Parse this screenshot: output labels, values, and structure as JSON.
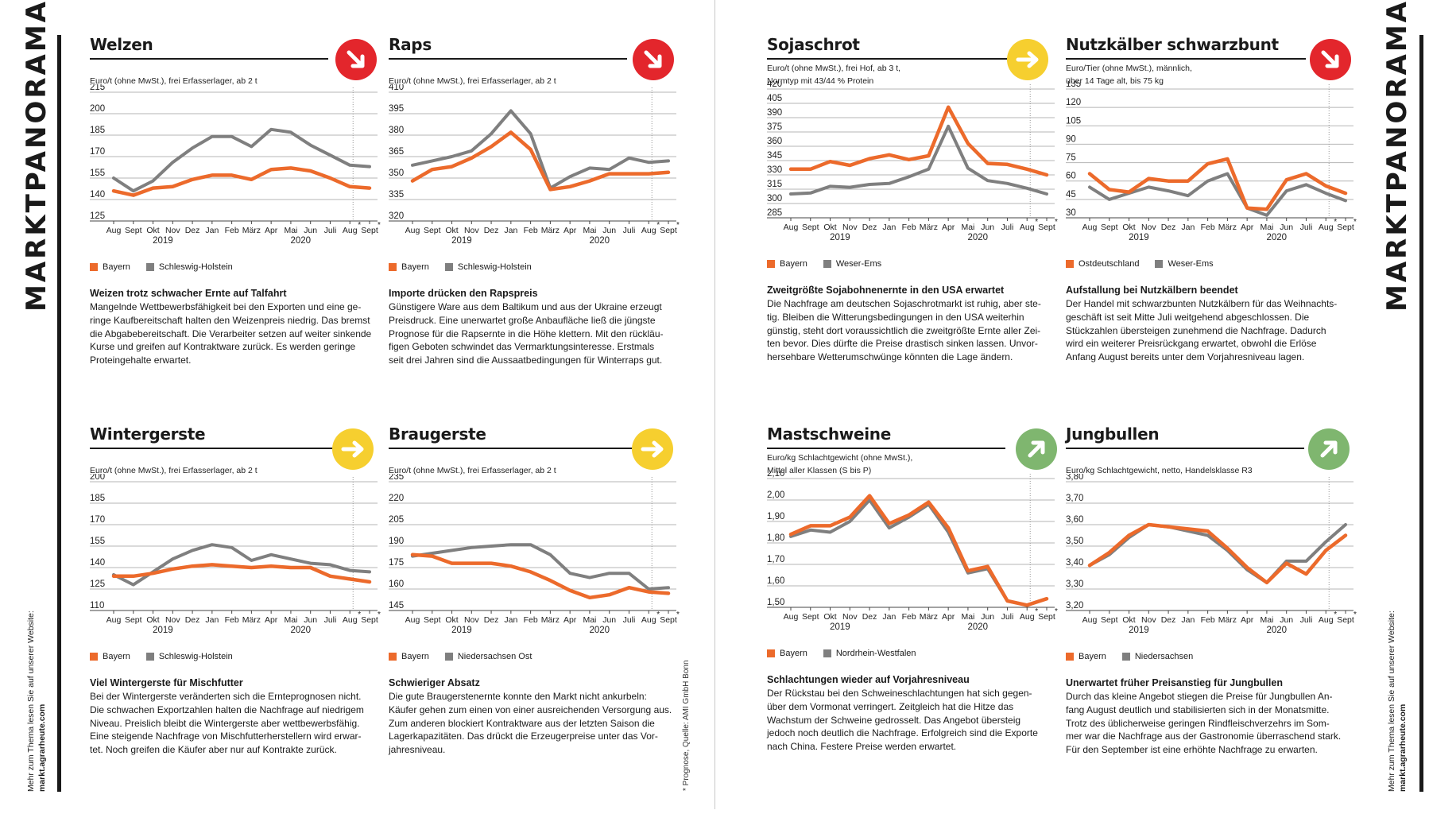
{
  "side": {
    "title": "MARKTPANORAMA",
    "note_line1": "Mehr zum Thema lesen Sie auf unserer Website:",
    "note_line2": "markt.agrarheute.com",
    "source": "* Prognose, Quelle: AMI GmbH Bonn"
  },
  "colors": {
    "orange": "#ec6a2b",
    "gray": "#7f7f7f",
    "red_arrow": "#e3262c",
    "yellow_arrow": "#f6cf2f",
    "green_arrow": "#7fb66f"
  },
  "panels": [
    {
      "id": "welzen",
      "title": "Welzen",
      "trend": "down-right-arrow-icon",
      "trend_color": "#e3262c",
      "unit": [
        "Euro/t (ohne MwSt.), frei Erfasserlager, ab 2 t"
      ],
      "headline": "Weizen trotz schwacher Ernte auf Talfahrt",
      "body": [
        "Mangelnde Wettbewerbsfähigkeit bei den Exporten und eine ge-",
        "ringe Kaufbereitschaft halten den Weizenpreis niedrig. Das bremst",
        "die Abgabebereitschaft. Die Verarbeiter setzen auf weiter sinkende",
        "Kurse und greifen auf Kontraktware zurück. Es werden geringe",
        "Proteingehalte erwartet."
      ]
    },
    {
      "id": "raps",
      "title": "Raps",
      "trend": "down-right-arrow-icon",
      "trend_color": "#e3262c",
      "unit": [
        "Euro/t (ohne MwSt.), frei Erfasserlager, ab 2 t"
      ],
      "headline": "Importe drücken den Rapspreis",
      "body": [
        "Günstigere Ware aus dem Baltikum und aus der Ukraine erzeugt",
        "Preisdruck. Eine unerwartet große Anbaufläche ließ die jüngste",
        "Prognose für die Rapsernte in die Höhe klettern. Mit den rückläu-",
        "figen Geboten schwindet das Vermarktungsinteresse. Erstmals",
        "seit drei Jahren sind die Aussaatbedingungen für Winterraps gut."
      ]
    },
    {
      "id": "sojaschrot",
      "title": "Sojaschrot",
      "trend": "right-arrow-icon",
      "trend_color": "#f6cf2f",
      "unit": [
        "Euro/t (ohne MwSt.), frei Hof, ab 3 t,",
        "Normtyp mit 43/44 % Protein"
      ],
      "headline": "Zweitgrößte Sojabohnenernte in den USA erwartet",
      "body": [
        "Die Nachfrage am deutschen Sojaschrotmarkt ist ruhig, aber ste-",
        "tig. Bleiben die Witterungsbedingungen in den USA weiterhin",
        "günstig, steht dort voraussichtlich die zweitgrößte Ernte aller Zei-",
        "ten bevor. Dies dürfte die Preise drastisch sinken lassen. Unvor-",
        "hersehbare Wetterumschwünge könnten die Lage ändern."
      ]
    },
    {
      "id": "nutzkaelber",
      "title": "Nutzkälber schwarzbunt",
      "trend": "down-right-arrow-icon",
      "trend_color": "#e3262c",
      "unit": [
        "Euro/Tier (ohne MwSt.), männlich,",
        "über 14 Tage alt, bis 75 kg"
      ],
      "headline": "Aufstallung bei Nutzkälbern beendet",
      "body": [
        "Der Handel mit schwarzbunten Nutzkälbern für das Weihnachts-",
        "geschäft ist seit Mitte Juli weitgehend abgeschlossen. Die",
        "Stückzahlen übersteigen zunehmend die Nachfrage. Dadurch",
        "wird ein weiterer Preisrückgang erwartet, obwohl die Erlöse",
        "Anfang August bereits unter dem Vorjahresniveau lagen."
      ]
    },
    {
      "id": "wintergerste",
      "title": "Wintergerste",
      "trend": "right-arrow-icon",
      "trend_color": "#f6cf2f",
      "unit": [
        "Euro/t (ohne MwSt.), frei Erfasserlager, ab 2 t"
      ],
      "headline": "Viel Wintergerste für Mischfutter",
      "body": [
        "Bei der Wintergerste veränderten sich die Ernteprognosen nicht.",
        "Die schwachen Exportzahlen halten die Nachfrage auf niedrigem",
        "Niveau. Preislich bleibt die Wintergerste aber wettbewerbsfähig.",
        "Eine steigende Nachfrage von Mischfutterherstellern wird erwar-",
        "tet. Noch greifen die Käufer aber nur auf Kontrakte zurück."
      ]
    },
    {
      "id": "braugerste",
      "title": "Braugerste",
      "trend": "right-arrow-icon",
      "trend_color": "#f6cf2f",
      "unit": [
        "Euro/t (ohne MwSt.), frei Erfasserlager, ab 2 t"
      ],
      "headline": "Schwieriger Absatz",
      "body": [
        "Die gute Braugerstenernte konnte den Markt nicht ankurbeln:",
        "Käufer gehen zum einen von einer ausreichenden Versorgung aus.",
        "Zum anderen blockiert Kontraktware aus der letzten Saison die",
        "Lagerkapazitäten. Das drückt die Erzeugerpreise unter das Vor-",
        "jahresniveau."
      ]
    },
    {
      "id": "mastschweine",
      "title": "Mastschweine",
      "trend": "up-right-arrow-icon",
      "trend_color": "#7fb66f",
      "unit": [
        "Euro/kg Schlachtgewicht (ohne MwSt.),",
        "Mittel aller Klassen (S bis P)"
      ],
      "headline": "Schlachtungen wieder auf Vorjahresniveau",
      "body": [
        "Der Rückstau bei den Schweineschlachtungen hat sich gegen-",
        "über dem Vormonat verringert. Zeitgleich hat die Hitze das",
        "Wachstum der Schweine gedrosselt. Das Angebot übersteig",
        "jedoch noch deutlich die Nachfrage. Erfolgreich sind die Exporte",
        "nach China. Festere Preise werden erwartet."
      ]
    },
    {
      "id": "jungbullen",
      "title": "Jungbullen",
      "trend": "up-right-arrow-icon",
      "trend_color": "#7fb66f",
      "unit": [
        "Euro/kg Schlachtgewicht, netto, Handelsklasse R3"
      ],
      "headline": "Unerwartet früher Preisanstieg für Jungbullen",
      "body": [
        "Durch das kleine Angebot stiegen die Preise für Jungbullen An-",
        "fang August deutlich und stabilisierten sich in der Monatsmitte.",
        "Trotz des üblicherweise geringen Rindfleischverzehrs im Som-",
        "mer war die Nachfrage aus der Gastronomie überraschend stark.",
        "Für den September ist eine erhöhte Nachfrage zu erwarten."
      ]
    }
  ],
  "chart_data": [
    {
      "type": "line",
      "panel": "welzen",
      "categories": [
        "Aug",
        "Sept",
        "Okt",
        "Nov",
        "Dez",
        "Jan",
        "Feb",
        "März",
        "Apr",
        "Mai",
        "Jun",
        "Juli",
        "Aug",
        "Sept"
      ],
      "forecast_marks": [
        "*",
        "*"
      ],
      "year_labels": [
        "2019",
        "2020"
      ],
      "ylim": [
        125,
        215
      ],
      "yticks": [
        "215",
        "200",
        "185",
        "170",
        "155",
        "140",
        "125"
      ],
      "series": [
        {
          "name": "Bayern",
          "color": "#ec6a2b",
          "values": [
            146,
            143,
            148,
            149,
            154,
            157,
            157,
            154,
            161,
            162,
            160,
            155,
            149,
            148
          ]
        },
        {
          "name": "Schleswig-Holstein",
          "color": "#7f7f7f",
          "values": [
            155,
            146,
            153,
            166,
            176,
            184,
            184,
            177,
            189,
            187,
            178,
            171,
            164,
            163
          ]
        }
      ]
    },
    {
      "type": "line",
      "panel": "raps",
      "categories": [
        "Aug",
        "Sept",
        "Okt",
        "Nov",
        "Dez",
        "Jan",
        "Feb",
        "März",
        "Apr",
        "Mai",
        "Jun",
        "Juli",
        "Aug",
        "Sept"
      ],
      "forecast_marks": [
        "*",
        "*"
      ],
      "year_labels": [
        "2019",
        "2020"
      ],
      "ylim": [
        320,
        410
      ],
      "yticks": [
        "410",
        "395",
        "380",
        "365",
        "350",
        "335",
        "320"
      ],
      "series": [
        {
          "name": "Bayern",
          "color": "#ec6a2b",
          "values": [
            348,
            356,
            358,
            364,
            372,
            382,
            370,
            342,
            344,
            348,
            353,
            353,
            353,
            354
          ]
        },
        {
          "name": "Schleswig-Holstein",
          "color": "#7f7f7f",
          "values": [
            359,
            362,
            365,
            369,
            381,
            397,
            381,
            343,
            351,
            357,
            356,
            364,
            361,
            362
          ]
        }
      ]
    },
    {
      "type": "line",
      "panel": "sojaschrot",
      "categories": [
        "Aug",
        "Sept",
        "Okt",
        "Nov",
        "Dez",
        "Jan",
        "Feb",
        "März",
        "Apr",
        "Mai",
        "Jun",
        "Juli",
        "Aug",
        "Sept"
      ],
      "forecast_marks": [
        "*",
        "*"
      ],
      "year_labels": [
        "2019",
        "2020"
      ],
      "ylim": [
        285,
        420
      ],
      "yticks": [
        "420",
        "405",
        "390",
        "375",
        "360",
        "345",
        "330",
        "315",
        "300",
        "285"
      ],
      "series": [
        {
          "name": "Bayern",
          "color": "#ec6a2b",
          "values": [
            336,
            336,
            344,
            340,
            347,
            351,
            346,
            350,
            401,
            363,
            342,
            341,
            336,
            330
          ]
        },
        {
          "name": "Weser-Ems",
          "color": "#7f7f7f",
          "values": [
            310,
            311,
            318,
            317,
            320,
            321,
            328,
            336,
            381,
            337,
            324,
            321,
            316,
            310
          ]
        }
      ]
    },
    {
      "type": "line",
      "panel": "nutzkaelber",
      "categories": [
        "Aug",
        "Sept",
        "Okt",
        "Nov",
        "Dez",
        "Jan",
        "Feb",
        "März",
        "Apr",
        "Mai",
        "Jun",
        "Juli",
        "Aug",
        "Sept"
      ],
      "forecast_marks": [
        "*",
        "*"
      ],
      "year_labels": [
        "2019",
        "2020"
      ],
      "ylim": [
        30,
        135
      ],
      "yticks": [
        "135",
        "120",
        "105",
        "90",
        "75",
        "60",
        "45",
        "30"
      ],
      "series": [
        {
          "name": "Ostdeutschland",
          "color": "#ec6a2b",
          "values": [
            66,
            53,
            51,
            62,
            60,
            60,
            74,
            78,
            38,
            37,
            61,
            66,
            56,
            50
          ]
        },
        {
          "name": "Weser-Ems",
          "color": "#7f7f7f",
          "values": [
            55,
            45,
            50,
            55,
            52,
            48,
            60,
            66,
            38,
            32,
            52,
            57,
            50,
            44
          ]
        }
      ]
    },
    {
      "type": "line",
      "panel": "wintergerste",
      "categories": [
        "Aug",
        "Sept",
        "Okt",
        "Nov",
        "Dez",
        "Jan",
        "Feb",
        "März",
        "Apr",
        "Mai",
        "Jun",
        "Juli",
        "Aug",
        "Sept"
      ],
      "forecast_marks": [
        "*",
        "*"
      ],
      "year_labels": [
        "2019",
        "2020"
      ],
      "ylim": [
        110,
        200
      ],
      "yticks": [
        "200",
        "185",
        "170",
        "155",
        "140",
        "125",
        "110"
      ],
      "series": [
        {
          "name": "Bayern",
          "color": "#ec6a2b",
          "values": [
            134,
            134,
            136,
            139,
            141,
            142,
            141,
            140,
            141,
            140,
            140,
            134,
            132,
            130
          ]
        },
        {
          "name": "Schleswig-Holstein",
          "color": "#7f7f7f",
          "values": [
            135,
            128,
            137,
            146,
            152,
            156,
            154,
            145,
            149,
            146,
            143,
            142,
            138,
            137
          ]
        }
      ]
    },
    {
      "type": "line",
      "panel": "braugerste",
      "categories": [
        "Aug",
        "Sept",
        "Okt",
        "Nov",
        "Dez",
        "Jan",
        "Feb",
        "März",
        "Apr",
        "Mai",
        "Jun",
        "Juli",
        "Aug",
        "Sept"
      ],
      "forecast_marks": [
        "*",
        "*"
      ],
      "year_labels": [
        "2019",
        "2020"
      ],
      "ylim": [
        145,
        235
      ],
      "yticks": [
        "235",
        "220",
        "205",
        "190",
        "175",
        "160",
        "145"
      ],
      "series": [
        {
          "name": "Bayern",
          "color": "#ec6a2b",
          "values": [
            184,
            183,
            178,
            178,
            178,
            176,
            172,
            166,
            159,
            154,
            156,
            161,
            158,
            157
          ]
        },
        {
          "name": "Niedersachsen Ost",
          "color": "#7f7f7f",
          "values": [
            183,
            185,
            187,
            189,
            190,
            191,
            191,
            184,
            171,
            168,
            171,
            171,
            160,
            161
          ]
        }
      ]
    },
    {
      "type": "line",
      "panel": "mastschweine",
      "categories": [
        "Aug",
        "Sept",
        "Okt",
        "Nov",
        "Dez",
        "Jan",
        "Feb",
        "März",
        "Apr",
        "Mai",
        "Jun",
        "Juli",
        "Aug",
        "Sept"
      ],
      "forecast_marks": [
        "*",
        "*"
      ],
      "year_labels": [
        "2019",
        "2020"
      ],
      "ylim": [
        1.5,
        2.1
      ],
      "yticks": [
        "2,10",
        "2,00",
        "1,90",
        "1,80",
        "1,70",
        "1,60",
        "1,50"
      ],
      "series": [
        {
          "name": "Bayern",
          "color": "#ec6a2b",
          "values": [
            1.84,
            1.88,
            1.88,
            1.92,
            2.02,
            1.89,
            1.93,
            1.99,
            1.87,
            1.67,
            1.69,
            1.53,
            1.51,
            1.54
          ]
        },
        {
          "name": "Nordrhein-Westfalen",
          "color": "#7f7f7f",
          "values": [
            1.83,
            1.86,
            1.85,
            1.9,
            2.0,
            1.87,
            1.92,
            1.98,
            1.85,
            1.66,
            1.68,
            1.53,
            1.51,
            1.54
          ]
        }
      ]
    },
    {
      "type": "line",
      "panel": "jungbullen",
      "categories": [
        "Aug",
        "Sept",
        "Okt",
        "Nov",
        "Dez",
        "Jan",
        "Feb",
        "März",
        "Apr",
        "Mai",
        "Jun",
        "Juli",
        "Aug",
        "Sept"
      ],
      "forecast_marks": [
        "*",
        "*"
      ],
      "year_labels": [
        "2019",
        "2020"
      ],
      "ylim": [
        3.2,
        3.8
      ],
      "yticks": [
        "3,80",
        "3,70",
        "3,60",
        "3,50",
        "3,40",
        "3,30",
        "3,20"
      ],
      "series": [
        {
          "name": "Bayern",
          "color": "#ec6a2b",
          "values": [
            3.41,
            3.47,
            3.55,
            3.6,
            3.59,
            3.58,
            3.57,
            3.49,
            3.4,
            3.33,
            3.42,
            3.37,
            3.48,
            3.55
          ]
        },
        {
          "name": "Niedersachsen",
          "color": "#7f7f7f",
          "values": [
            3.41,
            3.46,
            3.54,
            3.6,
            3.59,
            3.57,
            3.55,
            3.48,
            3.39,
            3.33,
            3.43,
            3.43,
            3.52,
            3.6
          ]
        }
      ]
    }
  ]
}
